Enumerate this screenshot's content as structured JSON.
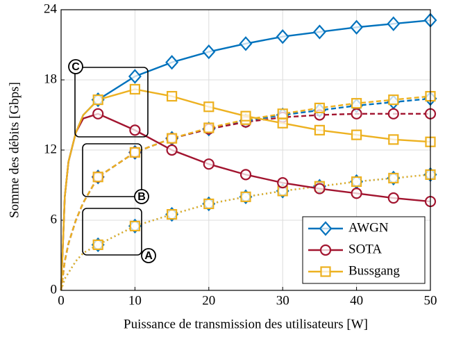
{
  "chart_data": {
    "type": "line",
    "xlabel": "Puissance de transmission des utilisateurs [W]",
    "ylabel": "Somme des débits [Gbps]",
    "x": [
      0,
      0.5,
      1,
      2,
      3,
      5,
      10,
      15,
      20,
      25,
      30,
      35,
      40,
      45,
      50
    ],
    "xlim": [
      0,
      50
    ],
    "xticks": [
      0,
      10,
      20,
      30,
      40,
      50
    ],
    "ylim": [
      0,
      24
    ],
    "yticks": [
      0,
      6,
      12,
      18,
      24
    ],
    "grid": true,
    "legend": "lower right",
    "series": [
      {
        "name": "AWGN",
        "color": "#0072bd",
        "marker": "diamond",
        "curves": {
          "solid": [
            0,
            8,
            11,
            13.5,
            15,
            16.3,
            18.3,
            19.5,
            20.4,
            21.1,
            21.7,
            22.1,
            22.5,
            22.8,
            23.1
          ],
          "dashed": [
            0,
            2.5,
            4,
            6,
            7.5,
            9.7,
            11.8,
            13.0,
            13.8,
            14.5,
            15.0,
            15.4,
            15.8,
            16.1,
            16.4
          ],
          "dotted": [
            0,
            1,
            1.5,
            2.5,
            3.2,
            3.9,
            5.5,
            6.5,
            7.4,
            8.0,
            8.5,
            8.9,
            9.3,
            9.6,
            9.9
          ]
        }
      },
      {
        "name": "SOTA",
        "color": "#a2142f",
        "marker": "circle",
        "curves": {
          "solid": [
            0,
            8,
            11,
            13.5,
            14.7,
            15.1,
            13.7,
            12.0,
            10.8,
            9.9,
            9.2,
            8.7,
            8.3,
            7.9,
            7.6
          ],
          "dashed": [
            0,
            2.5,
            4,
            6,
            7.5,
            9.7,
            11.8,
            13.0,
            13.8,
            14.4,
            14.8,
            15.0,
            15.1,
            15.1,
            15.1
          ]
        }
      },
      {
        "name": "Bussgang",
        "color": "#edb120",
        "marker": "square",
        "curves": {
          "solid": [
            0,
            8,
            11,
            13.5,
            15,
            16.3,
            17.2,
            16.6,
            15.7,
            14.9,
            14.3,
            13.7,
            13.3,
            12.9,
            12.7
          ],
          "dashed": [
            0,
            2.5,
            4,
            6,
            7.5,
            9.7,
            11.8,
            13.0,
            13.9,
            14.6,
            15.1,
            15.6,
            16.0,
            16.3,
            16.6
          ],
          "dotted": [
            0,
            1,
            1.5,
            2.5,
            3.2,
            3.9,
            5.5,
            6.5,
            7.4,
            8.0,
            8.5,
            8.9,
            9.3,
            9.6,
            9.9
          ]
        }
      }
    ],
    "annotations": [
      "A",
      "B",
      "C"
    ]
  }
}
